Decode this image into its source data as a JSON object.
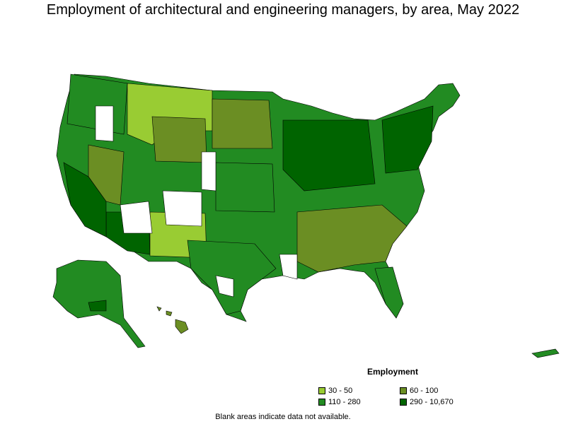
{
  "title": "Employment of architectural and engineering managers, by area, May 2022",
  "legend": {
    "title": "Employment",
    "items": [
      {
        "label": "30 - 50",
        "color": "#99cc33"
      },
      {
        "label": "60 - 100",
        "color": "#6b8e23"
      },
      {
        "label": "110 - 280",
        "color": "#228b22"
      },
      {
        "label": "290 - 10,670",
        "color": "#006400"
      }
    ]
  },
  "footnote": "Blank areas indicate data not available."
}
